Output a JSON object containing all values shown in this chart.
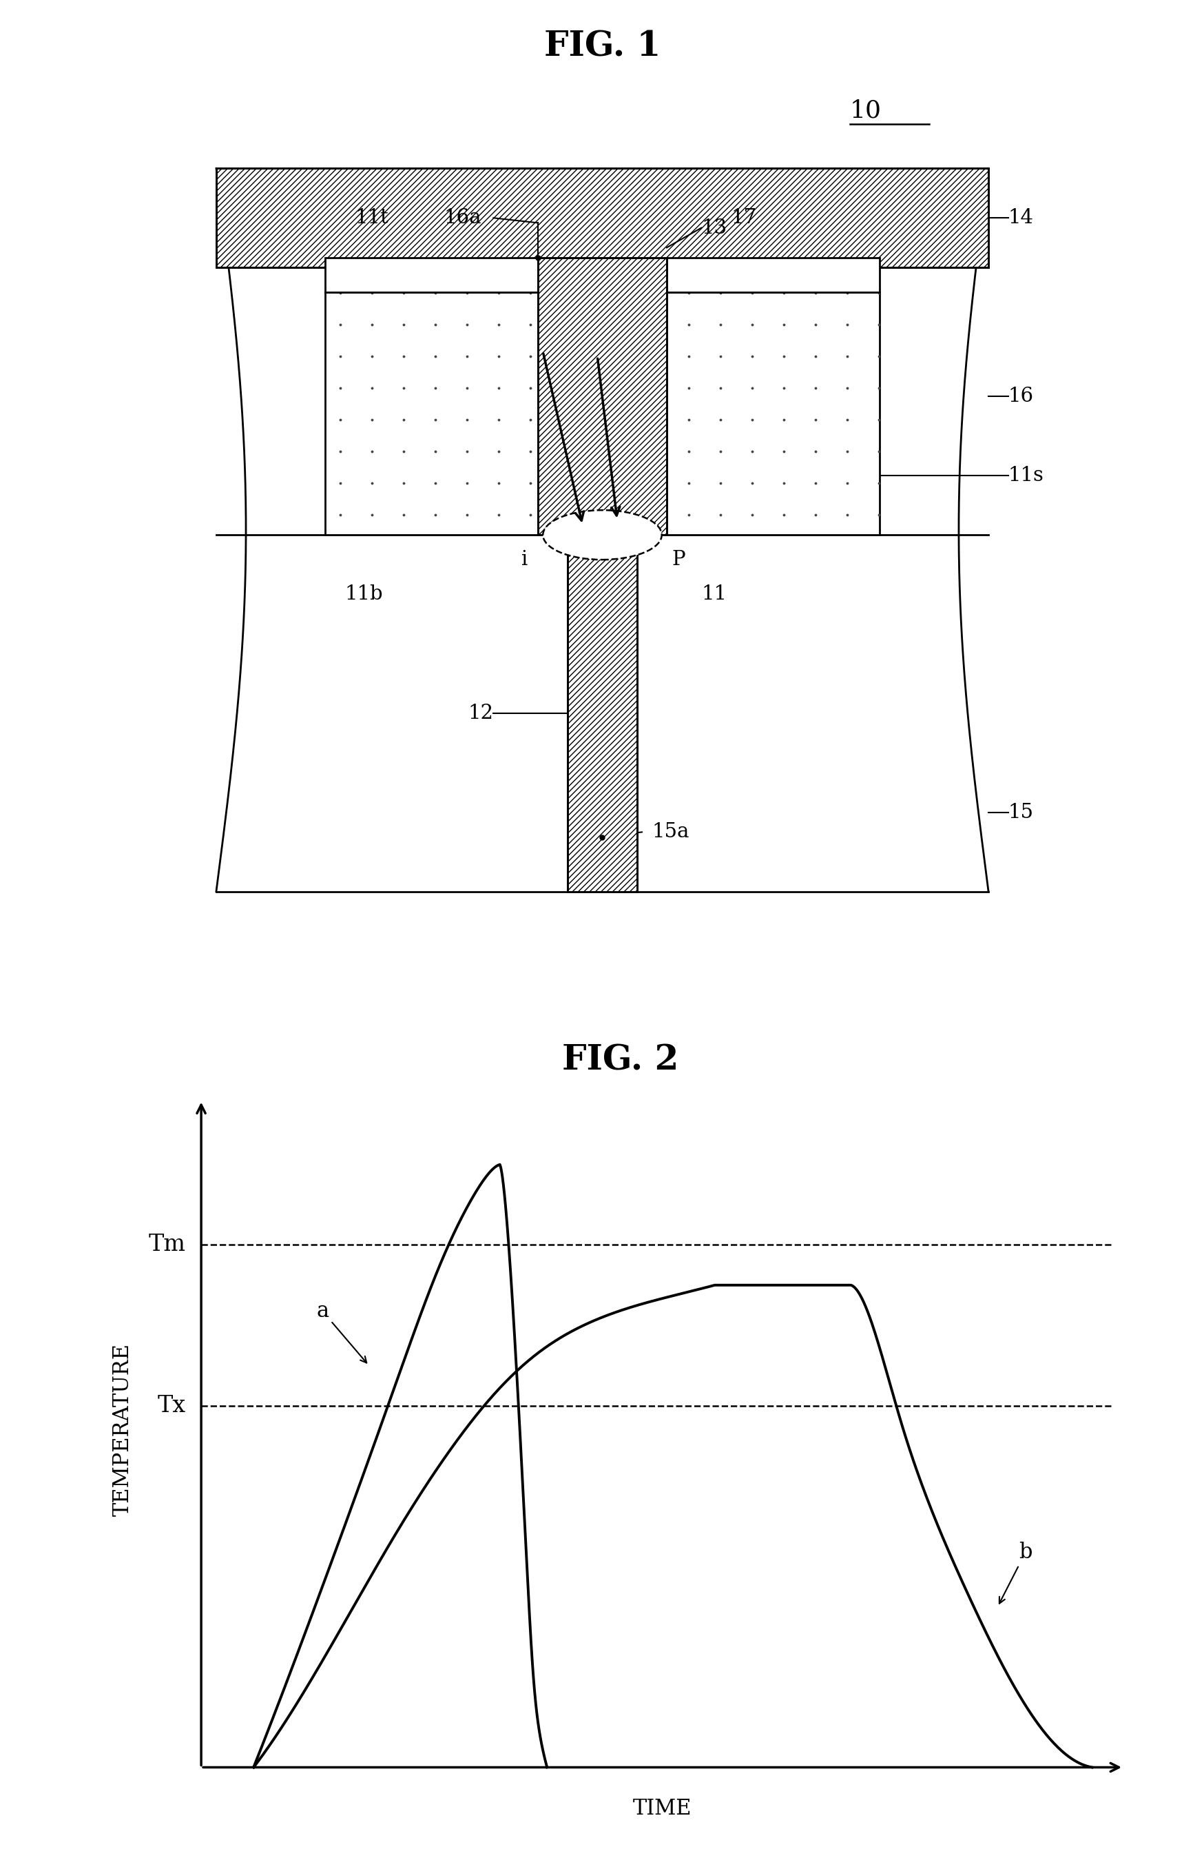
{
  "fig1_title": "FIG. 1",
  "fig2_title": "FIG. 2",
  "label_10": "10",
  "label_11": "11",
  "label_11b": "11b",
  "label_11t": "11t",
  "label_11s": "11s",
  "label_12": "12",
  "label_13": "13",
  "label_14": "14",
  "label_15": "15",
  "label_15a": "15a",
  "label_16": "16",
  "label_16a": "16a",
  "label_17": "17",
  "label_P": "P",
  "label_i": "i",
  "label_Tm": "Tm",
  "label_Tx": "Tx",
  "label_a": "a",
  "label_b": "b",
  "label_TIME": "TIME",
  "label_TEMPERATURE": "TEMPERATURE",
  "line_color": "#000000",
  "bg_color": "#ffffff"
}
